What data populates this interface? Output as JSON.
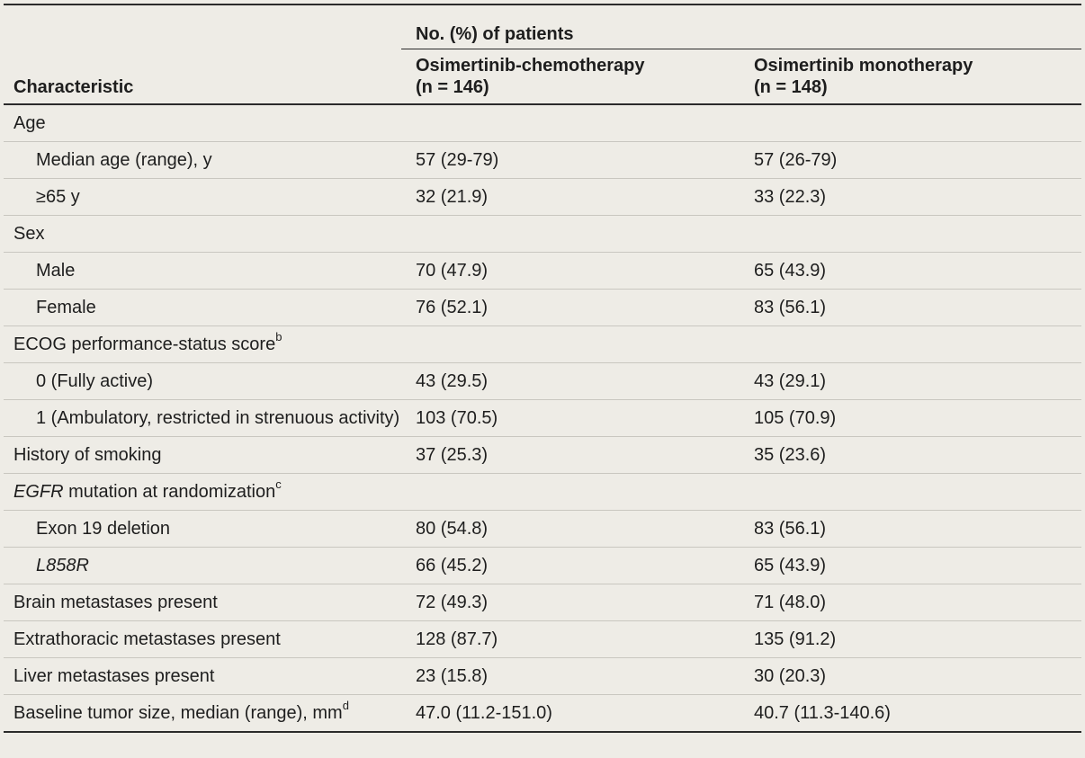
{
  "header": {
    "characteristic": "Characteristic",
    "group": "No. (%) of patients",
    "arm1_name": "Osimertinib-chemotherapy",
    "arm1_n": "(n = 146)",
    "arm2_name": "Osimertinib monotherapy",
    "arm2_n": "(n = 148)"
  },
  "rows": [
    {
      "label": "Age",
      "sub": false,
      "v1": "",
      "v2": ""
    },
    {
      "label": "Median age (range), y",
      "sub": true,
      "v1": "57 (29-79)",
      "v2": "57 (26-79)"
    },
    {
      "label": "≥65 y",
      "sub": true,
      "v1": "32 (21.9)",
      "v2": "33 (22.3)"
    },
    {
      "label": "Sex",
      "sub": false,
      "v1": "",
      "v2": ""
    },
    {
      "label": "Male",
      "sub": true,
      "v1": "70 (47.9)",
      "v2": "65 (43.9)"
    },
    {
      "label": "Female",
      "sub": true,
      "v1": "76 (52.1)",
      "v2": "83 (56.1)"
    },
    {
      "label": "ECOG performance-status score",
      "sup": "b",
      "sub": false,
      "v1": "",
      "v2": ""
    },
    {
      "label": "0 (Fully active)",
      "sub": true,
      "v1": "43 (29.5)",
      "v2": "43 (29.1)"
    },
    {
      "label": "1 (Ambulatory, restricted in strenuous activity)",
      "sub": true,
      "v1": "103 (70.5)",
      "v2": "105 (70.9)"
    },
    {
      "label": "History of smoking",
      "sub": false,
      "v1": "37 (25.3)",
      "v2": "35 (23.6)"
    },
    {
      "label_italic": "EGFR",
      "label": " mutation at randomization",
      "sup": "c",
      "sub": false,
      "v1": "",
      "v2": ""
    },
    {
      "label": "Exon 19 deletion",
      "sub": true,
      "v1": "80 (54.8)",
      "v2": "83 (56.1)"
    },
    {
      "label_italic": "L858R",
      "label": "",
      "sub": true,
      "v1": "66 (45.2)",
      "v2": "65 (43.9)"
    },
    {
      "label": "Brain metastases present",
      "sub": false,
      "v1": "72 (49.3)",
      "v2": "71 (48.0)"
    },
    {
      "label": "Extrathoracic metastases present",
      "sub": false,
      "v1": "128 (87.7)",
      "v2": "135 (91.2)"
    },
    {
      "label": "Liver metastases present",
      "sub": false,
      "v1": "23 (15.8)",
      "v2": "30 (20.3)"
    },
    {
      "label": "Baseline tumor size, median (range), mm",
      "sup": "d",
      "sub": false,
      "v1": "47.0 (11.2-151.0)",
      "v2": "40.7 (11.3-140.6)"
    }
  ]
}
